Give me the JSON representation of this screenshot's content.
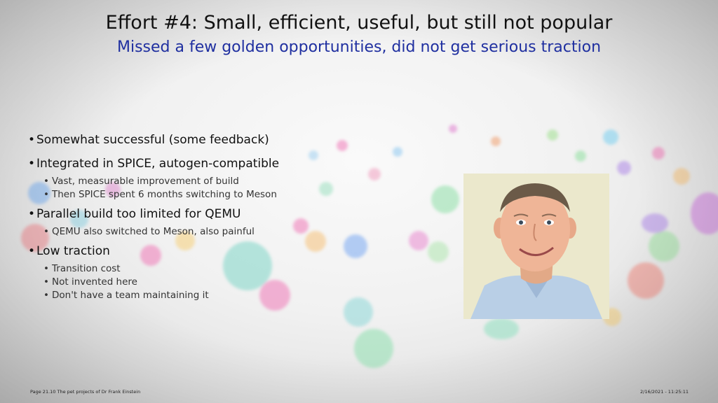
{
  "slide": {
    "title": "Effort #4: Small, efficient, useful, but still not popular",
    "subtitle": "Missed a few golden opportunities, did not get serious traction",
    "bullets": [
      {
        "text": "Somewhat successful (some feedback)",
        "subs": []
      },
      {
        "text": "Integrated in SPICE, autogen-compatible",
        "subs": [
          "Vast, measurable improvement of build",
          "Then SPICE spent 6 months switching to Meson"
        ]
      },
      {
        "text": "Parallel build too limited for QEMU",
        "subs": [
          "QEMU also switched to Meson, also painful"
        ]
      },
      {
        "text": "Low traction",
        "subs": [
          "Transition cost",
          "Not invented here",
          "Don't have a team maintaining it"
        ]
      }
    ]
  },
  "footer": {
    "left": "Page 21.10 The pet projects of Dr Frank Einstein",
    "right": "2/16/2021 - 11:25:11"
  },
  "colors": {
    "title": "#111111",
    "subtitle": "#1f2fa0"
  }
}
